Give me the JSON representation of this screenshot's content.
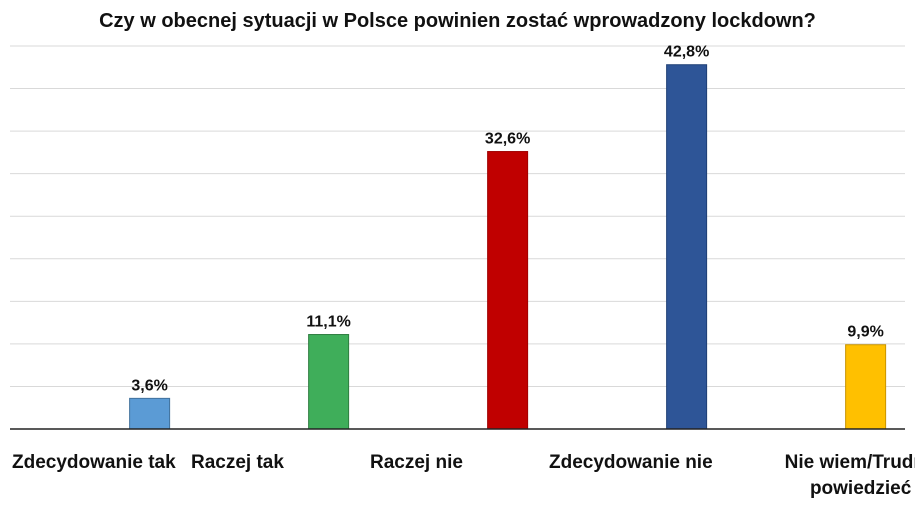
{
  "chart_data": {
    "type": "bar",
    "title": "Czy w obecnej sytuacji w Polsce powinien zostać wprowadzony lockdown?",
    "categories": [
      "Zdecydowanie tak",
      "Raczej tak",
      "Raczej nie",
      "Zdecydowanie nie",
      "Nie wiem/Trudno powiedzieć"
    ],
    "category_lines": [
      [
        "Zdecydowanie tak"
      ],
      [
        "Raczej tak"
      ],
      [
        "Raczej nie"
      ],
      [
        "Zdecydowanie nie"
      ],
      [
        "Nie wiem/Trudno",
        "powiedzieć"
      ]
    ],
    "values": [
      3.6,
      11.1,
      32.6,
      42.8,
      9.9
    ],
    "value_labels": [
      "3,6%",
      "11,1%",
      "32,6%",
      "42,8%",
      "9,9%"
    ],
    "colors": [
      "#5B9BD5",
      "#3FAE5A",
      "#C00000",
      "#2E5597",
      "#FFC000"
    ],
    "border_colors": [
      "#41719C",
      "#2E7D3F",
      "#A00000",
      "#1F3F75",
      "#C99400"
    ],
    "ylim": [
      0,
      45
    ],
    "grid": true,
    "gridline_step": 5,
    "xlabel": "",
    "ylabel": ""
  }
}
